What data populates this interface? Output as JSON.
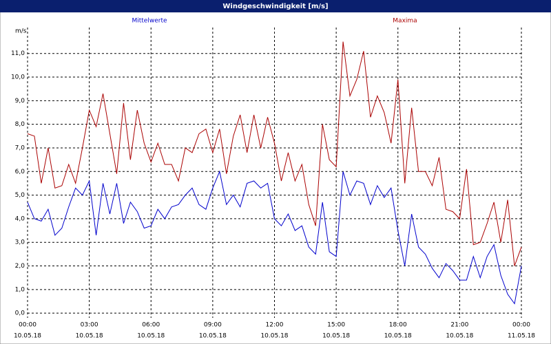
{
  "chart_data": {
    "type": "line",
    "title": "Windgeschwindigkeit [m/s]",
    "y_label": "m/s",
    "x": [
      0,
      0.3333,
      0.6667,
      1,
      1.3333,
      1.6667,
      2,
      2.3333,
      2.6667,
      3,
      3.3333,
      3.6667,
      4,
      4.3333,
      4.6667,
      5,
      5.3333,
      5.6667,
      6,
      6.3333,
      6.6667,
      7,
      7.3333,
      7.6667,
      8,
      8.3333,
      8.6667,
      9,
      9.3333,
      9.6667,
      10,
      10.3333,
      10.6667,
      11,
      11.3333,
      11.6667,
      12,
      12.3333,
      12.6667,
      13,
      13.3333,
      13.6667,
      14,
      14.3333,
      14.6667,
      15,
      15.3333,
      15.6667,
      16,
      16.3333,
      16.6667,
      17,
      17.3333,
      17.6667,
      18,
      18.3333,
      18.6667,
      19,
      19.3333,
      19.6667,
      20,
      20.3333,
      20.6667,
      21,
      21.3333,
      21.6667,
      22,
      22.3333,
      22.6667,
      23,
      23.3333,
      23.6667,
      24
    ],
    "series": [
      {
        "name": "Mittelwerte",
        "color": "#0000cc",
        "values": [
          4.7,
          4.0,
          3.9,
          4.4,
          3.3,
          3.6,
          4.5,
          5.3,
          5.0,
          5.6,
          3.3,
          5.5,
          4.2,
          5.5,
          3.8,
          4.7,
          4.3,
          3.6,
          3.7,
          4.4,
          4.0,
          4.5,
          4.6,
          5.0,
          5.3,
          4.6,
          4.4,
          5.3,
          6.0,
          4.6,
          5.0,
          4.5,
          5.5,
          5.6,
          5.3,
          5.5,
          4.0,
          3.7,
          4.2,
          3.5,
          3.7,
          2.8,
          2.5,
          4.7,
          2.6,
          2.4,
          6.0,
          5.0,
          5.6,
          5.5,
          4.6,
          5.4,
          4.9,
          5.3,
          3.5,
          2.0,
          4.2,
          2.8,
          2.5,
          1.9,
          1.5,
          2.1,
          1.8,
          1.4,
          1.4,
          2.4,
          1.5,
          2.4,
          2.9,
          1.6,
          0.8,
          0.4,
          2.0
        ]
      },
      {
        "name": "Maxima",
        "color": "#aa0000",
        "values": [
          7.6,
          7.5,
          5.5,
          7.0,
          5.3,
          5.4,
          6.3,
          5.5,
          7.0,
          8.6,
          7.9,
          9.3,
          7.6,
          5.9,
          8.9,
          6.5,
          8.6,
          7.2,
          6.4,
          7.2,
          6.3,
          6.3,
          5.6,
          7.0,
          6.8,
          7.6,
          7.8,
          6.8,
          7.8,
          5.9,
          7.5,
          8.4,
          6.8,
          8.4,
          7.0,
          8.3,
          7.2,
          5.6,
          6.8,
          5.6,
          6.3,
          4.6,
          3.7,
          8.0,
          6.5,
          6.2,
          11.5,
          9.2,
          9.9,
          11.1,
          8.3,
          9.2,
          8.5,
          7.2,
          9.9,
          5.5,
          8.7,
          6.0,
          6.0,
          5.4,
          6.6,
          4.4,
          4.3,
          4.0,
          6.1,
          2.9,
          3.0,
          3.8,
          4.7,
          3.0,
          4.8,
          2.0,
          2.8
        ]
      }
    ],
    "xlim": [
      0,
      24
    ],
    "ylim": [
      -0.2,
      12.1
    ],
    "xticks": [
      {
        "value": 0,
        "label": "00:00"
      },
      {
        "value": 3,
        "label": "03:00"
      },
      {
        "value": 6,
        "label": "06:00"
      },
      {
        "value": 9,
        "label": "09:00"
      },
      {
        "value": 12,
        "label": "12:00"
      },
      {
        "value": 15,
        "label": "15:00"
      },
      {
        "value": 18,
        "label": "18:00"
      },
      {
        "value": 21,
        "label": "21:00"
      },
      {
        "value": 24,
        "label": "00:00"
      }
    ],
    "xtick_dates": [
      "10.05.18",
      "10.05.18",
      "10.05.18",
      "10.05.18",
      "10.05.18",
      "10.05.18",
      "10.05.18",
      "10.05.18",
      "11.05.18"
    ],
    "yticks": [
      {
        "value": 0,
        "label": "0,0"
      },
      {
        "value": 1,
        "label": "1,0"
      },
      {
        "value": 2,
        "label": "2,0"
      },
      {
        "value": 3,
        "label": "3,0"
      },
      {
        "value": 4,
        "label": "4,0"
      },
      {
        "value": 5,
        "label": "5,0"
      },
      {
        "value": 6,
        "label": "6,0"
      },
      {
        "value": 7,
        "label": "7,0"
      },
      {
        "value": 8,
        "label": "8,0"
      },
      {
        "value": 9,
        "label": "9,0"
      },
      {
        "value": 10,
        "label": "10,0"
      },
      {
        "value": 11,
        "label": "11,0"
      }
    ],
    "grid": true
  }
}
